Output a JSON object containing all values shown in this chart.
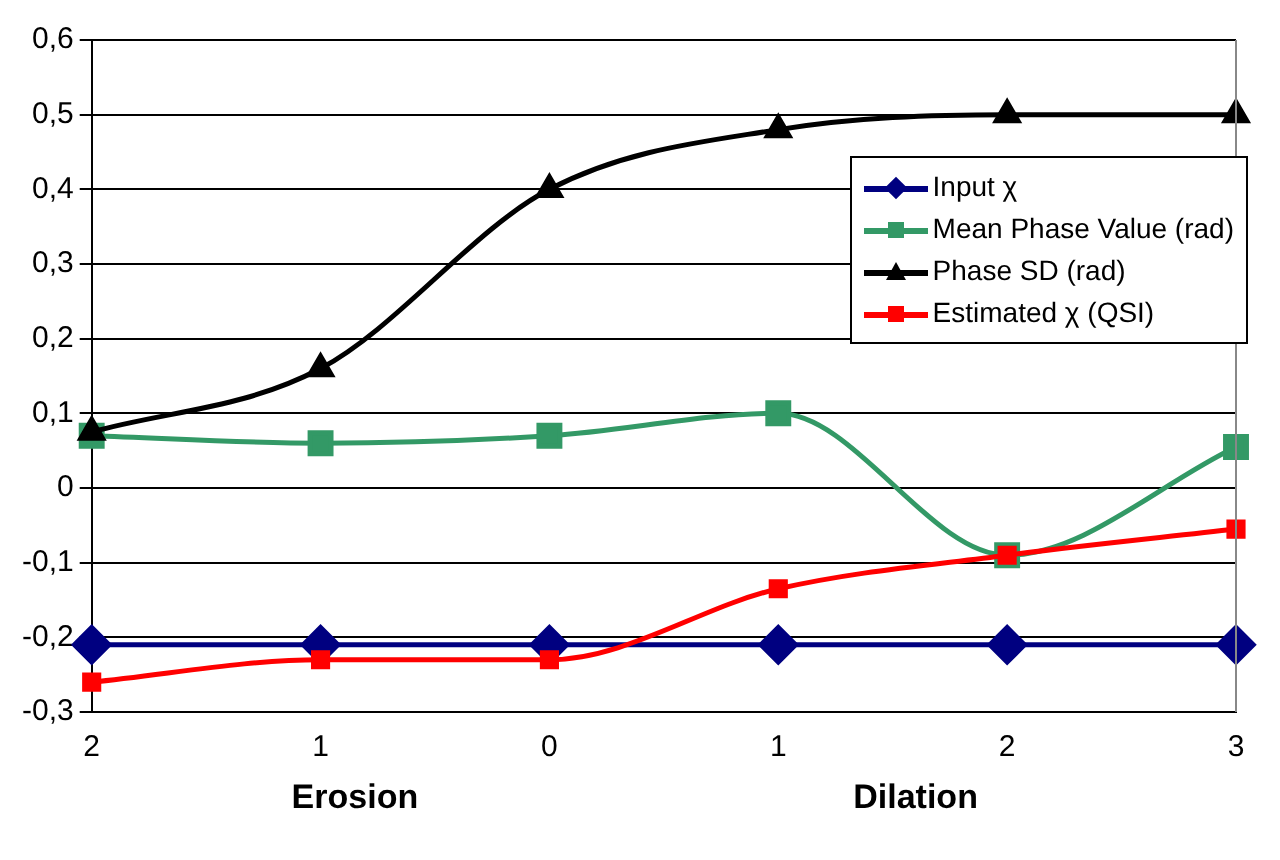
{
  "chart_data": {
    "type": "line",
    "categories": [
      "2",
      "1",
      "0",
      "1",
      "2",
      "3"
    ],
    "series": [
      {
        "name": "Input χ",
        "color": "#000080",
        "marker": "diamond",
        "values": [
          -0.21,
          -0.21,
          -0.21,
          -0.21,
          -0.21,
          -0.21
        ]
      },
      {
        "name": "Mean Phase Value (rad)",
        "color": "#339966",
        "marker": "square",
        "values": [
          0.07,
          0.06,
          0.07,
          0.1,
          -0.09,
          0.055
        ]
      },
      {
        "name": "Phase SD (rad)",
        "color": "#000000",
        "marker": "triangle",
        "values": [
          0.075,
          0.16,
          0.4,
          0.48,
          0.5,
          0.5
        ]
      },
      {
        "name": "Estimated χ (QSI)",
        "color": "#ff0000",
        "marker": "square",
        "values": [
          -0.26,
          -0.23,
          -0.23,
          -0.135,
          -0.09,
          -0.055
        ]
      }
    ],
    "ylim": [
      -0.3,
      0.6
    ],
    "yticks": [
      {
        "value": -0.3,
        "label": "-0,3"
      },
      {
        "value": -0.2,
        "label": "-0,2"
      },
      {
        "value": -0.1,
        "label": "-0,1"
      },
      0,
      {
        "value": 0.1,
        "label": "0,1"
      },
      {
        "value": 0.2,
        "label": "0,2"
      },
      {
        "value": 0.3,
        "label": "0,3"
      },
      {
        "value": 0.4,
        "label": "0,4"
      },
      {
        "value": 0.5,
        "label": "0,5"
      },
      {
        "value": 0.6,
        "label": "0,6"
      }
    ],
    "grid": "y",
    "legend": "top right",
    "line_style": "solid",
    "annotations": [
      "Erosion",
      "Dilation"
    ]
  }
}
